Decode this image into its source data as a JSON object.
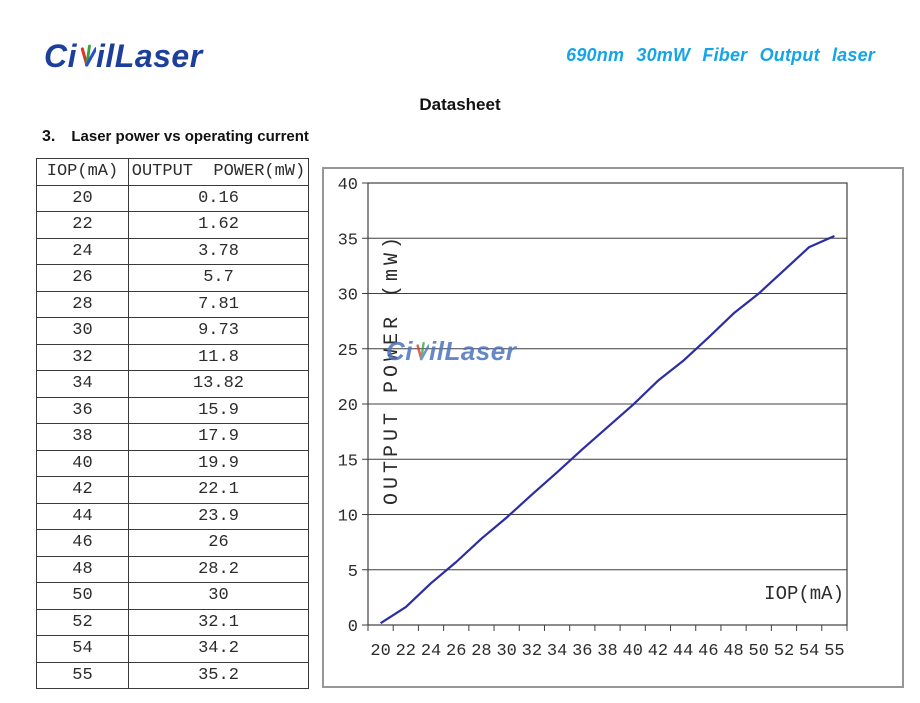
{
  "page": {
    "logo": {
      "part1": "Ci",
      "part2": "il",
      "part3": "Laser"
    },
    "product_title": "690nm 30mW Fiber Output laser",
    "doc_title": "Datasheet",
    "section": {
      "number": "3.",
      "title": "Laser power vs operating current"
    },
    "watermark": {
      "part1": "Ci",
      "part2": "il",
      "part3": "Laser"
    }
  },
  "colors": {
    "logo_blue": "#1d3f9b",
    "product_title_cyan": "#14a4e8",
    "line_navy": "#2b2ea3",
    "watermark_blue": "#4d74bd",
    "logo_v_red": "#e03127",
    "logo_v_green": "#2fa63a",
    "logo_v_blue": "#2b50c8"
  },
  "table": {
    "headers": [
      "IOP(mA)",
      "OUTPUT  POWER(mW)"
    ],
    "rows": [
      [
        "20",
        "0.16"
      ],
      [
        "22",
        "1.62"
      ],
      [
        "24",
        "3.78"
      ],
      [
        "26",
        "5.7"
      ],
      [
        "28",
        "7.81"
      ],
      [
        "30",
        "9.73"
      ],
      [
        "32",
        "11.8"
      ],
      [
        "34",
        "13.82"
      ],
      [
        "36",
        "15.9"
      ],
      [
        "38",
        "17.9"
      ],
      [
        "40",
        "19.9"
      ],
      [
        "42",
        "22.1"
      ],
      [
        "44",
        "23.9"
      ],
      [
        "46",
        "26"
      ],
      [
        "48",
        "28.2"
      ],
      [
        "50",
        "30"
      ],
      [
        "52",
        "32.1"
      ],
      [
        "54",
        "34.2"
      ],
      [
        "55",
        "35.2"
      ]
    ]
  },
  "chart_data": {
    "type": "line",
    "title": "",
    "x": [
      20,
      22,
      24,
      26,
      28,
      30,
      32,
      34,
      36,
      38,
      40,
      42,
      44,
      46,
      48,
      50,
      52,
      54,
      55
    ],
    "series": [
      {
        "name": "OUTPUT POWER",
        "values": [
          0.16,
          1.62,
          3.78,
          5.7,
          7.81,
          9.73,
          11.8,
          13.82,
          15.9,
          17.9,
          19.9,
          22.1,
          23.9,
          26,
          28.2,
          30,
          32.1,
          34.2,
          35.2
        ]
      }
    ],
    "xlabel": "IOP(mA)",
    "ylabel": "OUTPUT POWER (mW)",
    "ylim": [
      0,
      40
    ],
    "ytick_step": 5,
    "grid": "horizontal",
    "legend": "none",
    "axis_style": "category",
    "line_color": "#2b2ea3",
    "watermark": "CivilLaser"
  }
}
